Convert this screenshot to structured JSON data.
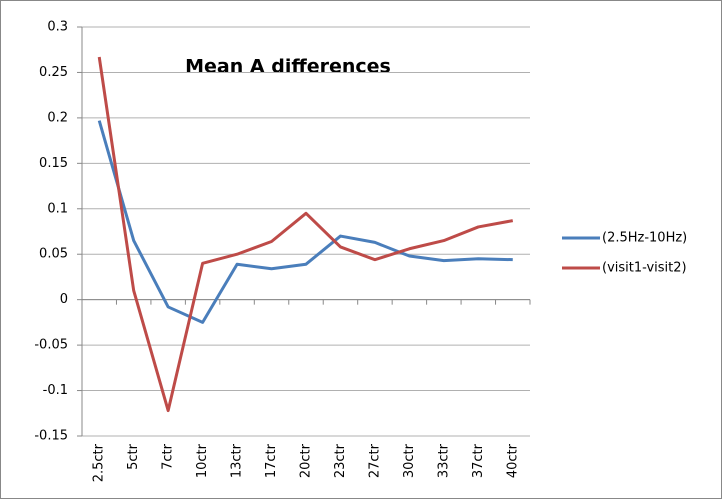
{
  "chart_data": {
    "type": "line",
    "title": "Mean A differences",
    "categories": [
      "2.5ctr",
      "5ctr",
      "7ctr",
      "10ctr",
      "13ctr",
      "17ctr",
      "20ctr",
      "23ctr",
      "27ctr",
      "30ctr",
      "33ctr",
      "37ctr",
      "40ctr"
    ],
    "series": [
      {
        "name": "(2.5Hz-10Hz)",
        "color": "#4a7ebb",
        "values": [
          0.197,
          0.065,
          -0.008,
          -0.025,
          0.039,
          0.034,
          0.039,
          0.07,
          0.063,
          0.048,
          0.043,
          0.045,
          0.044
        ]
      },
      {
        "name": "(visit1-visit2)",
        "color": "#be4b48",
        "values": [
          0.267,
          0.01,
          -0.122,
          0.04,
          0.05,
          0.064,
          0.095,
          0.058,
          0.044,
          0.056,
          0.065,
          0.08,
          0.087
        ]
      }
    ],
    "ylim": [
      -0.15,
      0.3
    ],
    "yticks": [
      -0.15,
      -0.1,
      -0.05,
      0,
      0.05,
      0.1,
      0.15,
      0.2,
      0.25,
      0.3
    ],
    "grid": true,
    "legend": "right"
  }
}
